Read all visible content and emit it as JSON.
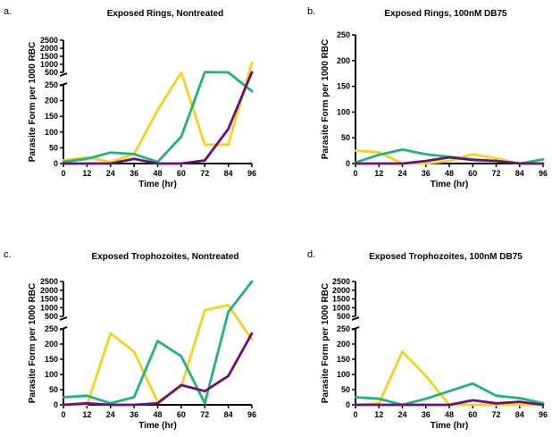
{
  "colors": {
    "yellow": "#f5d21b",
    "green": "#1fb47a",
    "purple": "#6b0f7a",
    "axis": "#000000"
  },
  "chart_data": [
    {
      "panel": "a.",
      "type": "line",
      "title": "Exposed  Rings, Nontreated",
      "xlabel": "Time (hr)",
      "ylabel": "Parasite Form per 1000 RBC",
      "x": [
        0,
        12,
        24,
        36,
        48,
        60,
        72,
        84,
        96
      ],
      "x_ticks": [
        "0",
        "12",
        "24",
        "36",
        "48",
        "60",
        "72",
        "84",
        "96"
      ],
      "broken_y_axis": true,
      "lower_ylim": [
        0,
        250
      ],
      "lower_ticks": [
        "0",
        "50",
        "100",
        "150",
        "200",
        "250"
      ],
      "upper_ylim": [
        500,
        2500
      ],
      "upper_ticks": [
        "500",
        "1000",
        "1500",
        "2000",
        "2500"
      ],
      "series": [
        {
          "color": "yellow",
          "values": [
            10,
            20,
            5,
            30,
            170,
            500,
            60,
            60,
            1100
          ]
        },
        {
          "color": "green",
          "values": [
            5,
            15,
            35,
            30,
            5,
            85,
            520,
            500,
            230
          ]
        },
        {
          "color": "purple",
          "values": [
            0,
            0,
            0,
            15,
            0,
            0,
            10,
            110,
            510
          ]
        }
      ]
    },
    {
      "panel": "b.",
      "type": "line",
      "title": "Exposed  Rings, 100nM DB75",
      "xlabel": "Time (hr)",
      "ylabel": "Parasite Form per 1000 RBC",
      "x": [
        0,
        12,
        24,
        36,
        48,
        60,
        72,
        84,
        96
      ],
      "x_ticks": [
        "0",
        "12",
        "24",
        "36",
        "48",
        "60",
        "72",
        "84",
        "96"
      ],
      "broken_y_axis": false,
      "ylim": [
        0,
        250
      ],
      "y_ticks": [
        "0",
        "50",
        "100",
        "150",
        "200",
        "250"
      ],
      "series": [
        {
          "color": "yellow",
          "values": [
            25,
            22,
            0,
            0,
            5,
            18,
            10,
            0,
            0
          ]
        },
        {
          "color": "green",
          "values": [
            2,
            17,
            27,
            18,
            13,
            8,
            5,
            0,
            8
          ]
        },
        {
          "color": "purple",
          "values": [
            0,
            0,
            0,
            5,
            12,
            7,
            5,
            0,
            0
          ]
        }
      ]
    },
    {
      "panel": "c.",
      "type": "line",
      "title": "Exposed  Trophozoites, Nontreated",
      "xlabel": "Time (hr)",
      "ylabel": "Parasite Form per 1000 RBC",
      "x": [
        0,
        12,
        24,
        36,
        48,
        60,
        72,
        84,
        96
      ],
      "x_ticks": [
        "0",
        "12",
        "24",
        "36",
        "48",
        "60",
        "72",
        "84",
        "96"
      ],
      "broken_y_axis": true,
      "lower_ylim": [
        0,
        250
      ],
      "lower_ticks": [
        "0",
        "50",
        "100",
        "150",
        "200",
        "250"
      ],
      "upper_ylim": [
        500,
        2500
      ],
      "upper_ticks": [
        "500",
        "1000",
        "1500",
        "2000",
        "2500"
      ],
      "series": [
        {
          "color": "yellow",
          "values": [
            0,
            0,
            235,
            175,
            10,
            60,
            850,
            1150,
            215
          ]
        },
        {
          "color": "green",
          "values": [
            25,
            30,
            5,
            25,
            210,
            160,
            5,
            750,
            2550
          ]
        },
        {
          "color": "purple",
          "values": [
            0,
            5,
            0,
            0,
            5,
            65,
            45,
            95,
            235
          ]
        }
      ]
    },
    {
      "panel": "d.",
      "type": "line",
      "title": "Exposed Trophozoites, 100nM DB75",
      "xlabel": "Time (hr)",
      "ylabel": "Parasite Form per 1000 RBC",
      "x": [
        0,
        12,
        24,
        36,
        48,
        60,
        72,
        84,
        96
      ],
      "x_ticks": [
        "0",
        "12",
        "24",
        "36",
        "48",
        "60",
        "72",
        "84",
        "96"
      ],
      "broken_y_axis": true,
      "lower_ylim": [
        0,
        250
      ],
      "lower_ticks": [
        "0",
        "50",
        "100",
        "150",
        "200",
        "250"
      ],
      "upper_ylim": [
        500,
        2500
      ],
      "upper_ticks": [
        "500",
        "1000",
        "1500",
        "2000",
        "2500"
      ],
      "series": [
        {
          "color": "yellow",
          "values": [
            0,
            5,
            175,
            95,
            0,
            0,
            0,
            0,
            0
          ]
        },
        {
          "color": "green",
          "values": [
            25,
            20,
            0,
            20,
            45,
            70,
            30,
            22,
            5
          ]
        },
        {
          "color": "purple",
          "values": [
            0,
            0,
            0,
            0,
            0,
            15,
            5,
            10,
            0
          ]
        }
      ]
    }
  ]
}
